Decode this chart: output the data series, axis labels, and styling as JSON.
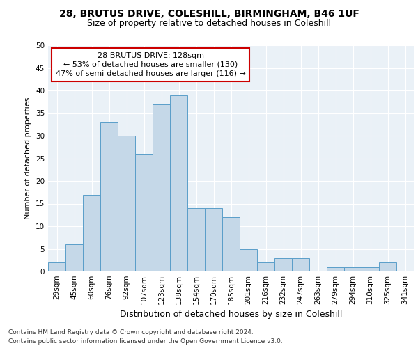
{
  "title1": "28, BRUTUS DRIVE, COLESHILL, BIRMINGHAM, B46 1UF",
  "title2": "Size of property relative to detached houses in Coleshill",
  "xlabel": "Distribution of detached houses by size in Coleshill",
  "ylabel": "Number of detached properties",
  "bar_labels": [
    "29sqm",
    "45sqm",
    "60sqm",
    "76sqm",
    "92sqm",
    "107sqm",
    "123sqm",
    "138sqm",
    "154sqm",
    "170sqm",
    "185sqm",
    "201sqm",
    "216sqm",
    "232sqm",
    "247sqm",
    "263sqm",
    "279sqm",
    "294sqm",
    "310sqm",
    "325sqm",
    "341sqm"
  ],
  "bar_values": [
    2,
    6,
    17,
    33,
    30,
    26,
    37,
    39,
    14,
    14,
    12,
    5,
    2,
    3,
    3,
    0,
    1,
    1,
    1,
    2,
    0
  ],
  "bar_color": "#c5d8e8",
  "bar_edgecolor": "#5a9ec9",
  "annotation_text": "28 BRUTUS DRIVE: 128sqm\n← 53% of detached houses are smaller (130)\n47% of semi-detached houses are larger (116) →",
  "annotation_box_color": "#ffffff",
  "annotation_box_edgecolor": "#cc0000",
  "ylim": [
    0,
    50
  ],
  "yticks": [
    0,
    5,
    10,
    15,
    20,
    25,
    30,
    35,
    40,
    45,
    50
  ],
  "bg_color": "#eaf1f7",
  "fig_bg_color": "#ffffff",
  "footer_line1": "Contains HM Land Registry data © Crown copyright and database right 2024.",
  "footer_line2": "Contains public sector information licensed under the Open Government Licence v3.0.",
  "title1_fontsize": 10,
  "title2_fontsize": 9,
  "xlabel_fontsize": 9,
  "ylabel_fontsize": 8,
  "tick_fontsize": 7.5,
  "annotation_fontsize": 8,
  "footer_fontsize": 6.5
}
